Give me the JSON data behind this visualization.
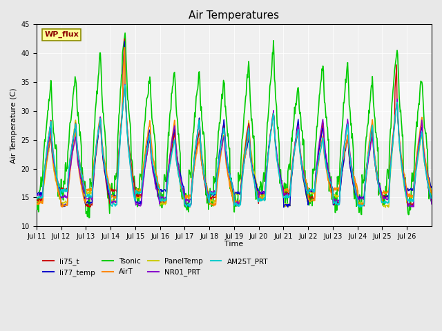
{
  "title": "Air Temperatures",
  "xlabel": "Time",
  "ylabel": "Air Temperature (C)",
  "ylim": [
    10,
    45
  ],
  "yticks": [
    10,
    15,
    20,
    25,
    30,
    35,
    40,
    45
  ],
  "bg_color": "#e8e8e8",
  "plot_bg": "#f0f0f0",
  "legend_entries": [
    "li75_t",
    "li77_temp",
    "Tsonic",
    "AirT",
    "PanelTemp",
    "NR01_PRT",
    "AM25T_PRT"
  ],
  "legend_colors": [
    "#cc0000",
    "#0000cc",
    "#00cc00",
    "#ff8800",
    "#cccc00",
    "#8800cc",
    "#00cccc"
  ],
  "wp_flux_label": "WP_flux",
  "xtick_labels": [
    "Jul 11",
    "Jul 12",
    "Jul 13",
    "Jul 14",
    "Jul 15",
    "Jul 16",
    "Jul 17",
    "Jul 18",
    "Jul 19",
    "Jul 20",
    "Jul 21",
    "Jul 22",
    "Jul 23",
    "Jul 24",
    "Jul 25",
    "Jul 26"
  ],
  "num_days": 16,
  "points_per_day": 48,
  "span_shade": [
    25,
    35
  ]
}
